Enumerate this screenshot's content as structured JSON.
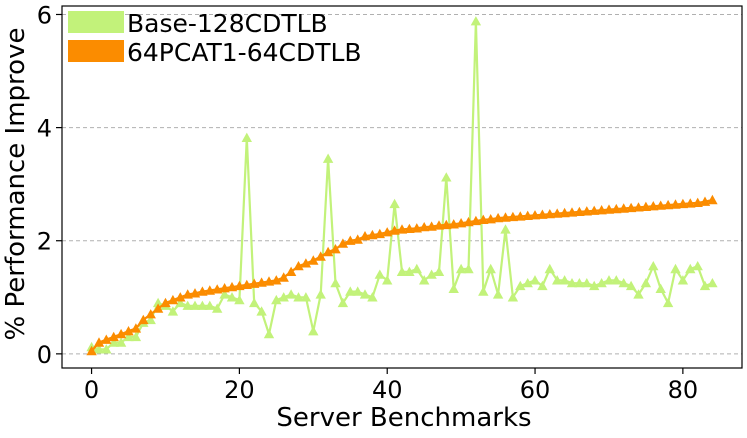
{
  "chart_data": {
    "type": "line",
    "xlabel": "Server Benchmarks",
    "ylabel": "% Performance Improve",
    "xlim": [
      -4,
      88
    ],
    "ylim": [
      -0.25,
      6.15
    ],
    "xticks": [
      0,
      20,
      40,
      60,
      80
    ],
    "yticks": [
      0,
      2,
      4,
      6
    ],
    "grid": "horizontal-dashed",
    "legend_position": "top-left",
    "series": [
      {
        "name": "Base-128CDTLB",
        "color": "#c2f27a",
        "marker": "triangle",
        "values": [
          0.12,
          0.08,
          0.08,
          0.2,
          0.2,
          0.3,
          0.3,
          0.55,
          0.6,
          0.9,
          0.85,
          0.75,
          0.9,
          0.85,
          0.85,
          0.85,
          0.85,
          0.8,
          1.05,
          1.0,
          0.95,
          3.82,
          0.9,
          0.75,
          0.35,
          0.95,
          1.0,
          1.05,
          1.0,
          1.0,
          0.4,
          1.05,
          3.45,
          1.25,
          0.9,
          1.1,
          1.1,
          1.05,
          1.0,
          1.4,
          1.3,
          2.65,
          1.45,
          1.45,
          1.5,
          1.3,
          1.4,
          1.45,
          3.12,
          1.15,
          1.5,
          1.5,
          5.88,
          1.1,
          1.5,
          1.05,
          2.2,
          1.0,
          1.2,
          1.25,
          1.3,
          1.2,
          1.5,
          1.3,
          1.3,
          1.25,
          1.25,
          1.25,
          1.2,
          1.25,
          1.3,
          1.3,
          1.25,
          1.2,
          1.05,
          1.25,
          1.55,
          1.15,
          0.9,
          1.5,
          1.3,
          1.5,
          1.55,
          1.2,
          1.25
        ]
      },
      {
        "name": "64PCAT1-64CDTLB",
        "color": "#fb8c00",
        "marker": "triangle",
        "values": [
          0.05,
          0.2,
          0.25,
          0.3,
          0.35,
          0.4,
          0.45,
          0.6,
          0.7,
          0.8,
          0.9,
          0.95,
          1.0,
          1.05,
          1.07,
          1.1,
          1.12,
          1.14,
          1.16,
          1.18,
          1.2,
          1.22,
          1.24,
          1.26,
          1.28,
          1.3,
          1.35,
          1.45,
          1.55,
          1.6,
          1.65,
          1.72,
          1.8,
          1.85,
          1.95,
          2.0,
          2.02,
          2.08,
          2.1,
          2.12,
          2.15,
          2.18,
          2.2,
          2.21,
          2.22,
          2.24,
          2.25,
          2.27,
          2.28,
          2.29,
          2.31,
          2.33,
          2.35,
          2.37,
          2.38,
          2.4,
          2.41,
          2.42,
          2.43,
          2.44,
          2.45,
          2.46,
          2.47,
          2.48,
          2.49,
          2.5,
          2.51,
          2.52,
          2.53,
          2.54,
          2.55,
          2.56,
          2.57,
          2.58,
          2.59,
          2.6,
          2.61,
          2.62,
          2.63,
          2.64,
          2.65,
          2.66,
          2.67,
          2.69,
          2.72
        ]
      }
    ]
  }
}
